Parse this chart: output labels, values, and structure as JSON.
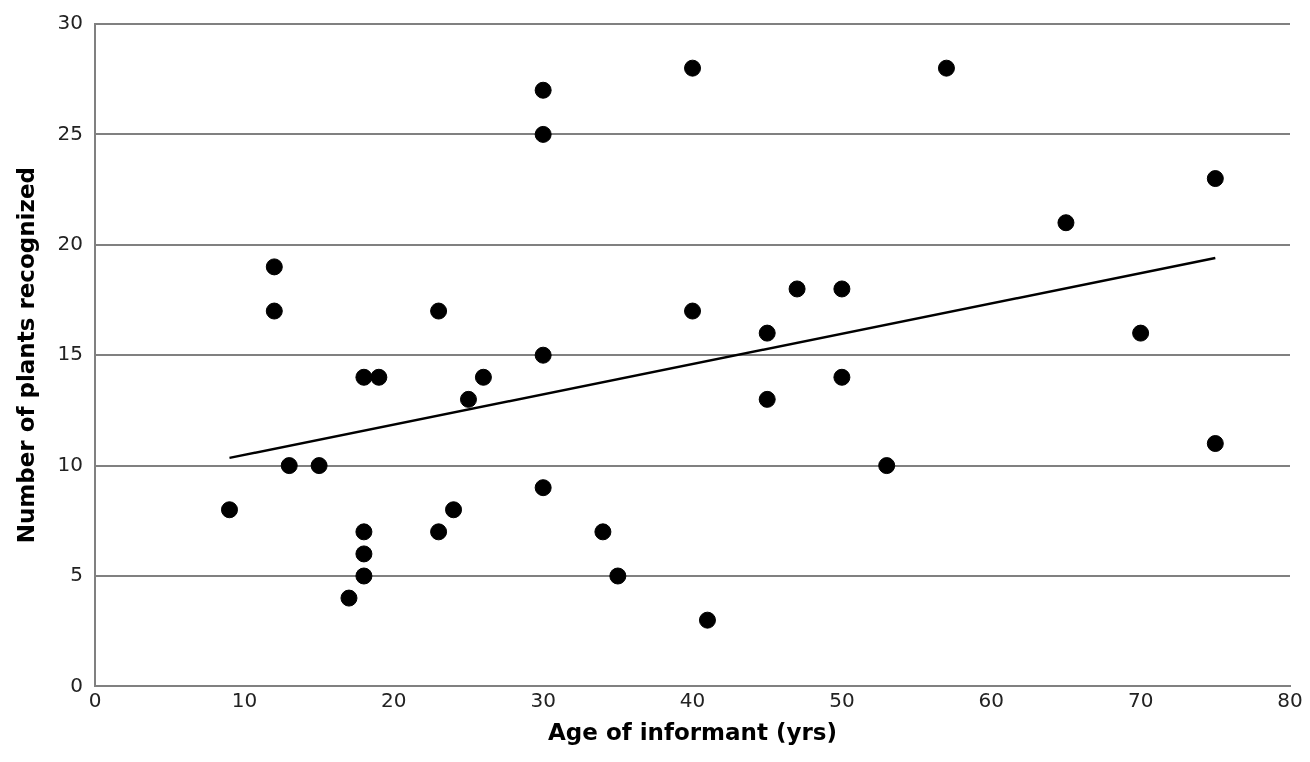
{
  "chart_data": {
    "type": "scatter",
    "xlabel": "Age of informant (yrs)",
    "ylabel": "Number of plants recognized",
    "xlim": [
      0,
      80
    ],
    "xticks": [
      0,
      10,
      20,
      30,
      40,
      50,
      60,
      70,
      80
    ],
    "ylim": [
      0,
      30
    ],
    "yticks": [
      0,
      5,
      10,
      15,
      20,
      25,
      30
    ],
    "grid": "y",
    "legend": false,
    "marker": "circle",
    "series": [
      {
        "color": "#000000",
        "x": [
          9,
          12,
          12,
          13,
          15,
          17,
          18,
          18,
          18,
          18,
          19,
          23,
          23,
          24,
          25,
          26,
          30,
          30,
          30,
          30,
          34,
          35,
          40,
          40,
          41,
          45,
          45,
          47,
          50,
          50,
          53,
          57,
          65,
          70,
          75,
          75
        ],
        "values": [
          8,
          19,
          17,
          10,
          10,
          4,
          14,
          7,
          6,
          5,
          14,
          17,
          7,
          8,
          13,
          14,
          27,
          25,
          15,
          9,
          7,
          5,
          28,
          17,
          3,
          16,
          13,
          18,
          18,
          14,
          10,
          28,
          21,
          16,
          23,
          11
        ]
      },
      {
        "type": "line",
        "color": "#000000",
        "x": [
          9,
          75
        ],
        "values": [
          10.35,
          19.4
        ],
        "marker": "none"
      }
    ]
  }
}
